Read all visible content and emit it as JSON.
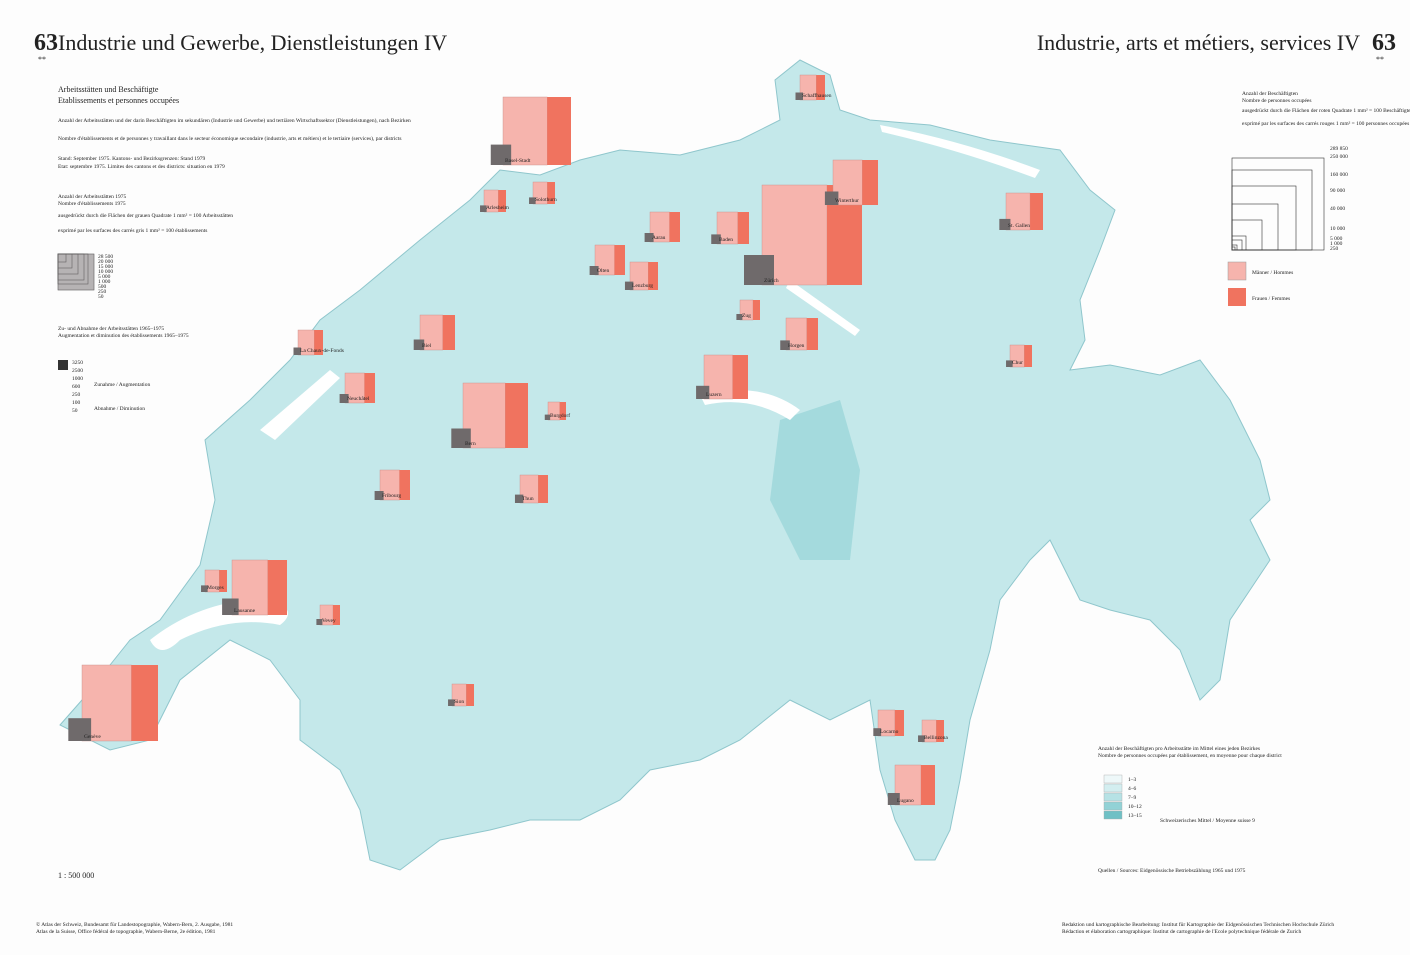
{
  "header": {
    "number_left": "63",
    "stars_left": "**",
    "title_de": "Industrie und Gewerbe, Dienstleistungen IV",
    "title_fr": "Industrie, arts et métiers, services IV",
    "number_right": "63",
    "stars_right": "**"
  },
  "intro": {
    "title_de": "Arbeitsstätten und Beschäftigte",
    "title_fr": "Etablissements et personnes occupées",
    "text_de": "Anzahl der Arbeitsstätten und der darin Beschäftigten im sekundären (Industrie und Gewerbe) und tertiären Wirtschaftssektor (Dienstleistungen), nach Bezirken",
    "text_fr": "Nombre d'établissements et de personnes y travaillant dans le secteur économique secondaire (industrie, arts et métiers) et le tertiaire (services), par districts",
    "stand_de": "Stand: September 1975. Kantons- und Bezirksgrenzen: Stand 1979",
    "stand_fr": "Etat: septembre 1975. Limites des cantons et des districts: situation en 1979"
  },
  "legend_establishments": {
    "title_de": "Anzahl der Arbeitsstätten 1975",
    "title_fr": "Nombre d'établissements 1975",
    "note_de": "ausgedrückt durch die Flächen der grauen Quadrate 1 mm² = 100 Arbeitsstätten",
    "note_fr": "exprimé par les surfaces des carrés gris 1 mm² = 100 établissements",
    "scale": [
      "28 500",
      "20 000",
      "15 000",
      "10 000",
      "5 000",
      "1 000",
      "500",
      "250",
      "50"
    ]
  },
  "legend_change": {
    "title_de": "Zu- und Abnahme der Arbeitsstätten 1965–1975",
    "title_fr": "Augmentation et diminution des établissements 1965–1975",
    "increase": "Zunahme / Augmentation",
    "decrease": "Abnahme / Diminution",
    "scale": [
      "3250",
      "2500",
      "1000",
      "600",
      "250",
      "100",
      "50"
    ]
  },
  "legend_employees": {
    "title_de": "Anzahl der Beschäftigten",
    "title_fr": "Nombre de personnes occupées",
    "note_de": "ausgedrückt durch die Flächen der roten Quadrate 1 mm² = 100 Beschäftigte",
    "note_fr": "exprimé par les surfaces des carrés rouges 1 mm² = 100 personnes occupées",
    "scale": [
      "289 850",
      "250 000",
      "160 000",
      "90 000",
      "40 000",
      "10 000",
      "5 000",
      "1 000",
      "250"
    ],
    "men": "Männer / Hommes",
    "women": "Frauen / Femmes"
  },
  "legend_density": {
    "title_de": "Anzahl der Beschäftigten pro Arbeitsstätte im Mittel eines jeden Bezirkes",
    "title_fr": "Nombre de personnes occupées par établissement, en moyenne pour chaque district",
    "classes": [
      "1–3",
      "4–6",
      "7–9",
      "10–12",
      "13–15"
    ],
    "mean": "Schweizerisches Mittel / Moyenne suisse 9"
  },
  "districts": [
    "Basel-Stadt",
    "Arlesheim",
    "Zürich",
    "Winterthur",
    "Bern",
    "Genève",
    "Lausanne",
    "Luzern",
    "St. Gallen",
    "Biel",
    "Baden",
    "Aarau",
    "Lugano",
    "Schaffhausen",
    "Neuchâtel",
    "La Chaux-de-Fonds",
    "Fribourg",
    "Thun",
    "Olten",
    "Solothurn",
    "Chur",
    "Sion",
    "Locarno",
    "Bellinzona",
    "Vevey",
    "Morges",
    "Horgen",
    "Zug",
    "Lenzburg",
    "Burgdorf"
  ],
  "footer": {
    "scale": "1 : 500 000",
    "copyright_de": "© Atlas der Schweiz, Bundesamt für Landestopographie, Wabern-Bern, 2. Ausgabe, 1981",
    "copyright_fr": "Atlas de la Suisse, Office fédéral de topographie, Wabern-Berne, 2e édition, 1981",
    "credits_de": "Redaktion und kartographische Bearbeitung: Institut für Kartographie der Eidgenössischen Technischen Hochschule Zürich",
    "credits_fr": "Rédaction et élaboration cartographique: Institut de cartographie de l'Ecole polytechnique fédérale de Zurich",
    "sources": "Quellen / Sources: Eidgenössische Betriebszählung 1965 und 1975"
  }
}
